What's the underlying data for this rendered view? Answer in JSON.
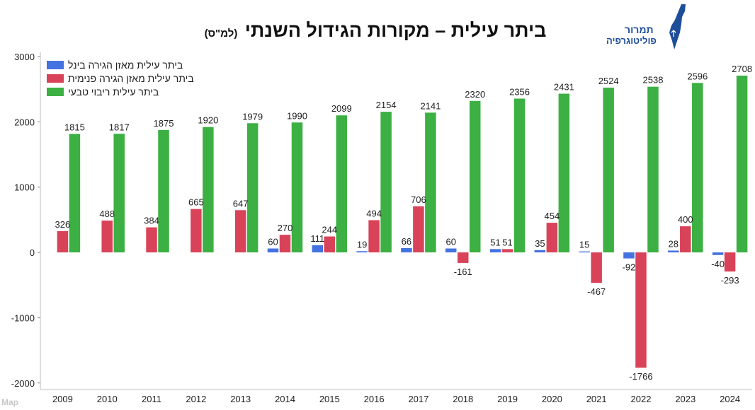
{
  "title": "ביתר עילית – מקורות הגידול השנתי",
  "subtitle": "(למ\"ס)",
  "logo": {
    "line1": "תמרור",
    "line2": "פוליטוגרפיה",
    "icon": "israel-map-icon",
    "color": "#1f4e99"
  },
  "watermark": "Map",
  "chart_data": {
    "type": "bar",
    "categories": [
      "2009",
      "2010",
      "2011",
      "2012",
      "2013",
      "2014",
      "2015",
      "2016",
      "2017",
      "2018",
      "2019",
      "2020",
      "2021",
      "2022",
      "2023",
      "2024"
    ],
    "series": [
      {
        "name": "ביתר עילית מאזן הגירה בינל",
        "color": "#4472e0",
        "values": [
          0,
          0,
          0,
          0,
          0,
          60,
          111,
          19,
          66,
          60,
          51,
          35,
          15,
          -92,
          28,
          -40
        ],
        "labels": [
          null,
          null,
          null,
          null,
          null,
          "60",
          "111",
          "19",
          "66",
          "60",
          "51",
          "35",
          "15",
          "-92",
          "28",
          "-40"
        ]
      },
      {
        "name": "ביתר עילית מאזן הגירה פנימית",
        "color": "#d9435a",
        "values": [
          326,
          488,
          384,
          665,
          647,
          270,
          244,
          494,
          706,
          -161,
          51,
          454,
          -467,
          -1766,
          400,
          -293
        ],
        "labels": [
          "326",
          "488",
          "384",
          "665",
          "647",
          "270",
          "244",
          "494",
          "706",
          "-161",
          "51",
          "454",
          "-467",
          "-1766",
          "400",
          "-293"
        ]
      },
      {
        "name": "ביתר עילית ריבוי טבעי",
        "color": "#3cb043",
        "values": [
          1815,
          1817,
          1875,
          1920,
          1979,
          1990,
          2099,
          2154,
          2141,
          2320,
          2356,
          2431,
          2524,
          2538,
          2596,
          2708
        ],
        "labels": [
          "1815",
          "1817",
          "1875",
          "1920",
          "1979",
          "1990",
          "2099",
          "2154",
          "2141",
          "2320",
          "2356",
          "2431",
          "2524",
          "2538",
          "2596",
          "2708"
        ]
      }
    ],
    "ylim": [
      -2100,
      3000
    ],
    "yticks": [
      -2000,
      -1000,
      0,
      1000,
      2000,
      3000
    ],
    "ytick_labels": [
      "-2000",
      "-1000",
      "0",
      "1000",
      "2000",
      "3000"
    ],
    "grid": false,
    "legend_position": "top-left"
  }
}
